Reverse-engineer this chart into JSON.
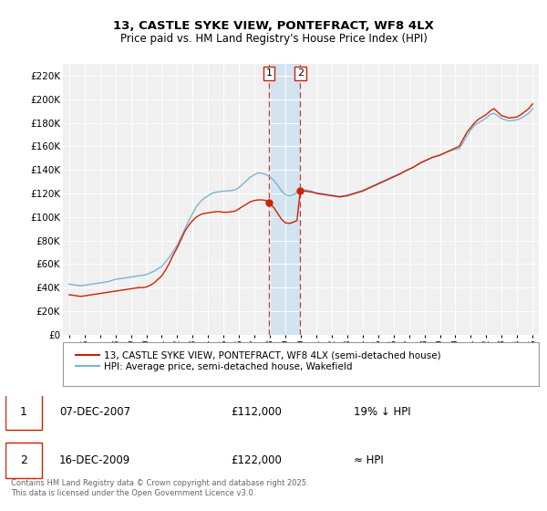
{
  "title": "13, CASTLE SYKE VIEW, PONTEFRACT, WF8 4LX",
  "subtitle": "Price paid vs. HM Land Registry's House Price Index (HPI)",
  "ylabel_ticks": [
    "£0",
    "£20K",
    "£40K",
    "£60K",
    "£80K",
    "£100K",
    "£120K",
    "£140K",
    "£160K",
    "£180K",
    "£200K",
    "£220K"
  ],
  "ytick_values": [
    0,
    20000,
    40000,
    60000,
    80000,
    100000,
    120000,
    140000,
    160000,
    180000,
    200000,
    220000
  ],
  "ylim": [
    0,
    230000
  ],
  "hpi_color": "#7ab3d4",
  "price_color": "#cc2200",
  "marker_color": "#cc2200",
  "background_color": "#f0f0f0",
  "grid_color": "#ffffff",
  "transaction1_date_num": 2007.93,
  "transaction1_price": 112000,
  "transaction2_date_num": 2009.96,
  "transaction2_price": 122000,
  "legend_label1": "13, CASTLE SYKE VIEW, PONTEFRACT, WF8 4LX (semi-detached house)",
  "legend_label2": "HPI: Average price, semi-detached house, Wakefield",
  "table_row1": [
    "1",
    "07-DEC-2007",
    "£112,000",
    "19% ↓ HPI"
  ],
  "table_row2": [
    "2",
    "16-DEC-2009",
    "£122,000",
    "≈ HPI"
  ],
  "footer": "Contains HM Land Registry data © Crown copyright and database right 2025.\nThis data is licensed under the Open Government Licence v3.0.",
  "hpi_data": [
    [
      1995.0,
      43000
    ],
    [
      1995.25,
      42500
    ],
    [
      1995.5,
      42000
    ],
    [
      1995.75,
      41500
    ],
    [
      1996.0,
      42000
    ],
    [
      1996.25,
      42500
    ],
    [
      1996.5,
      43000
    ],
    [
      1996.75,
      43500
    ],
    [
      1997.0,
      44000
    ],
    [
      1997.25,
      44500
    ],
    [
      1997.5,
      45000
    ],
    [
      1997.75,
      46000
    ],
    [
      1998.0,
      47000
    ],
    [
      1998.25,
      47500
    ],
    [
      1998.5,
      48000
    ],
    [
      1998.75,
      48500
    ],
    [
      1999.0,
      49000
    ],
    [
      1999.25,
      49500
    ],
    [
      1999.5,
      50000
    ],
    [
      1999.75,
      50500
    ],
    [
      2000.0,
      51000
    ],
    [
      2000.25,
      52500
    ],
    [
      2000.5,
      54000
    ],
    [
      2000.75,
      56000
    ],
    [
      2001.0,
      58000
    ],
    [
      2001.25,
      62000
    ],
    [
      2001.5,
      66000
    ],
    [
      2001.75,
      71000
    ],
    [
      2002.0,
      76000
    ],
    [
      2002.25,
      83000
    ],
    [
      2002.5,
      90000
    ],
    [
      2002.75,
      97000
    ],
    [
      2003.0,
      103000
    ],
    [
      2003.25,
      109000
    ],
    [
      2003.5,
      113000
    ],
    [
      2003.75,
      116000
    ],
    [
      2004.0,
      118000
    ],
    [
      2004.25,
      120000
    ],
    [
      2004.5,
      121000
    ],
    [
      2004.75,
      121500
    ],
    [
      2005.0,
      122000
    ],
    [
      2005.25,
      122000
    ],
    [
      2005.5,
      122500
    ],
    [
      2005.75,
      123000
    ],
    [
      2006.0,
      125000
    ],
    [
      2006.25,
      128000
    ],
    [
      2006.5,
      131000
    ],
    [
      2006.75,
      134000
    ],
    [
      2007.0,
      136000
    ],
    [
      2007.25,
      137500
    ],
    [
      2007.5,
      137000
    ],
    [
      2007.75,
      136000
    ],
    [
      2008.0,
      134000
    ],
    [
      2008.25,
      131000
    ],
    [
      2008.5,
      127000
    ],
    [
      2008.75,
      122000
    ],
    [
      2009.0,
      119000
    ],
    [
      2009.25,
      118000
    ],
    [
      2009.5,
      119000
    ],
    [
      2009.75,
      120500
    ],
    [
      2010.0,
      122000
    ],
    [
      2010.25,
      123000
    ],
    [
      2010.5,
      122500
    ],
    [
      2010.75,
      121500
    ],
    [
      2011.0,
      120500
    ],
    [
      2011.25,
      120000
    ],
    [
      2011.5,
      119500
    ],
    [
      2011.75,
      119000
    ],
    [
      2012.0,
      118500
    ],
    [
      2012.25,
      118000
    ],
    [
      2012.5,
      117500
    ],
    [
      2012.75,
      118000
    ],
    [
      2013.0,
      118500
    ],
    [
      2013.25,
      119500
    ],
    [
      2013.5,
      120500
    ],
    [
      2013.75,
      121500
    ],
    [
      2014.0,
      122500
    ],
    [
      2014.25,
      124000
    ],
    [
      2014.5,
      125500
    ],
    [
      2014.75,
      127000
    ],
    [
      2015.0,
      128500
    ],
    [
      2015.25,
      130000
    ],
    [
      2015.5,
      131500
    ],
    [
      2015.75,
      133000
    ],
    [
      2016.0,
      134500
    ],
    [
      2016.25,
      136000
    ],
    [
      2016.5,
      137500
    ],
    [
      2016.75,
      139000
    ],
    [
      2017.0,
      140500
    ],
    [
      2017.25,
      142000
    ],
    [
      2017.5,
      144000
    ],
    [
      2017.75,
      146000
    ],
    [
      2018.0,
      147500
    ],
    [
      2018.25,
      149000
    ],
    [
      2018.5,
      150500
    ],
    [
      2018.75,
      151500
    ],
    [
      2019.0,
      152500
    ],
    [
      2019.25,
      154000
    ],
    [
      2019.5,
      155500
    ],
    [
      2019.75,
      156500
    ],
    [
      2020.0,
      157500
    ],
    [
      2020.25,
      158000
    ],
    [
      2020.5,
      163000
    ],
    [
      2020.75,
      169000
    ],
    [
      2021.0,
      174000
    ],
    [
      2021.25,
      178000
    ],
    [
      2021.5,
      180000
    ],
    [
      2021.75,
      182000
    ],
    [
      2022.0,
      184000
    ],
    [
      2022.25,
      187000
    ],
    [
      2022.5,
      188000
    ],
    [
      2022.75,
      186000
    ],
    [
      2023.0,
      183500
    ],
    [
      2023.25,
      182500
    ],
    [
      2023.5,
      181500
    ],
    [
      2023.75,
      182000
    ],
    [
      2024.0,
      182500
    ],
    [
      2024.25,
      184000
    ],
    [
      2024.5,
      186000
    ],
    [
      2024.75,
      188000
    ],
    [
      2025.0,
      192000
    ]
  ],
  "price_data": [
    [
      1995.0,
      34000
    ],
    [
      1995.25,
      33500
    ],
    [
      1995.5,
      33000
    ],
    [
      1995.75,
      32500
    ],
    [
      1996.0,
      33000
    ],
    [
      1996.25,
      33500
    ],
    [
      1996.5,
      34000
    ],
    [
      1996.75,
      34500
    ],
    [
      1997.0,
      35000
    ],
    [
      1997.25,
      35500
    ],
    [
      1997.5,
      36000
    ],
    [
      1997.75,
      36500
    ],
    [
      1998.0,
      37000
    ],
    [
      1998.25,
      37500
    ],
    [
      1998.5,
      38000
    ],
    [
      1998.75,
      38500
    ],
    [
      1999.0,
      39000
    ],
    [
      1999.25,
      39500
    ],
    [
      1999.5,
      40000
    ],
    [
      1999.75,
      40000
    ],
    [
      2000.0,
      40500
    ],
    [
      2000.25,
      42000
    ],
    [
      2000.5,
      44000
    ],
    [
      2000.75,
      47000
    ],
    [
      2001.0,
      50000
    ],
    [
      2001.25,
      55000
    ],
    [
      2001.5,
      61000
    ],
    [
      2001.75,
      68000
    ],
    [
      2002.0,
      74000
    ],
    [
      2002.25,
      81000
    ],
    [
      2002.5,
      88000
    ],
    [
      2002.75,
      93000
    ],
    [
      2003.0,
      97000
    ],
    [
      2003.25,
      100000
    ],
    [
      2003.5,
      102000
    ],
    [
      2003.75,
      103000
    ],
    [
      2004.0,
      103500
    ],
    [
      2004.25,
      104000
    ],
    [
      2004.5,
      104500
    ],
    [
      2004.75,
      104500
    ],
    [
      2005.0,
      104000
    ],
    [
      2005.25,
      104000
    ],
    [
      2005.5,
      104500
    ],
    [
      2005.75,
      105000
    ],
    [
      2006.0,
      107000
    ],
    [
      2006.25,
      109000
    ],
    [
      2006.5,
      111000
    ],
    [
      2006.75,
      113000
    ],
    [
      2007.0,
      114000
    ],
    [
      2007.25,
      114500
    ],
    [
      2007.5,
      114500
    ],
    [
      2007.75,
      114000
    ],
    [
      2007.93,
      112000
    ],
    [
      2008.0,
      111000
    ],
    [
      2008.25,
      108000
    ],
    [
      2008.5,
      103000
    ],
    [
      2008.75,
      98000
    ],
    [
      2009.0,
      95000
    ],
    [
      2009.25,
      94500
    ],
    [
      2009.5,
      95500
    ],
    [
      2009.75,
      97000
    ],
    [
      2009.96,
      122000
    ],
    [
      2010.0,
      122000
    ],
    [
      2010.25,
      122000
    ],
    [
      2010.5,
      121500
    ],
    [
      2010.75,
      121000
    ],
    [
      2011.0,
      120000
    ],
    [
      2011.25,
      119500
    ],
    [
      2011.5,
      119000
    ],
    [
      2011.75,
      118500
    ],
    [
      2012.0,
      118000
    ],
    [
      2012.25,
      117500
    ],
    [
      2012.5,
      117000
    ],
    [
      2012.75,
      117500
    ],
    [
      2013.0,
      118000
    ],
    [
      2013.25,
      119000
    ],
    [
      2013.5,
      120000
    ],
    [
      2013.75,
      121000
    ],
    [
      2014.0,
      122000
    ],
    [
      2014.25,
      123500
    ],
    [
      2014.5,
      125000
    ],
    [
      2014.75,
      126500
    ],
    [
      2015.0,
      128000
    ],
    [
      2015.25,
      129500
    ],
    [
      2015.5,
      131000
    ],
    [
      2015.75,
      132500
    ],
    [
      2016.0,
      134000
    ],
    [
      2016.25,
      135500
    ],
    [
      2016.5,
      137000
    ],
    [
      2016.75,
      139000
    ],
    [
      2017.0,
      140500
    ],
    [
      2017.25,
      142000
    ],
    [
      2017.5,
      144000
    ],
    [
      2017.75,
      146000
    ],
    [
      2018.0,
      147500
    ],
    [
      2018.25,
      149000
    ],
    [
      2018.5,
      150500
    ],
    [
      2018.75,
      151500
    ],
    [
      2019.0,
      152500
    ],
    [
      2019.25,
      154000
    ],
    [
      2019.5,
      155500
    ],
    [
      2019.75,
      157000
    ],
    [
      2020.0,
      158500
    ],
    [
      2020.25,
      160000
    ],
    [
      2020.5,
      166000
    ],
    [
      2020.75,
      172000
    ],
    [
      2021.0,
      176000
    ],
    [
      2021.25,
      180000
    ],
    [
      2021.5,
      183000
    ],
    [
      2021.75,
      185000
    ],
    [
      2022.0,
      187000
    ],
    [
      2022.25,
      190000
    ],
    [
      2022.5,
      192000
    ],
    [
      2022.75,
      189000
    ],
    [
      2023.0,
      186000
    ],
    [
      2023.25,
      185000
    ],
    [
      2023.5,
      184000
    ],
    [
      2023.75,
      184500
    ],
    [
      2024.0,
      185000
    ],
    [
      2024.25,
      187000
    ],
    [
      2024.5,
      189500
    ],
    [
      2024.75,
      192000
    ],
    [
      2025.0,
      196000
    ]
  ]
}
